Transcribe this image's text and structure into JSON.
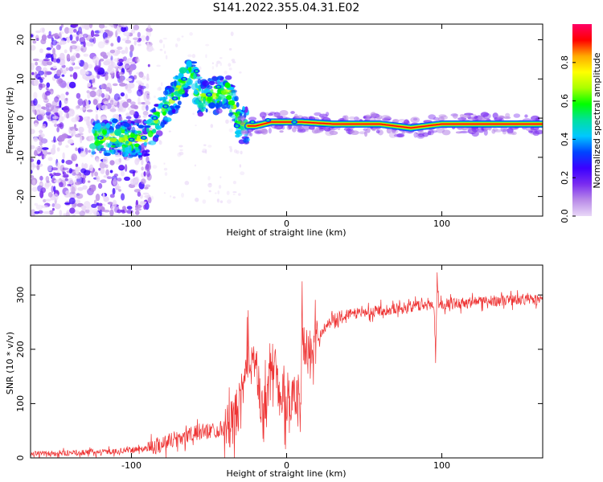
{
  "title": "S141.2022.355.04.31.E02",
  "chart_data": [
    {
      "type": "heatmap",
      "xlabel": "Height of straight line (km)",
      "ylabel": "Frequency (Hz)",
      "xlim": [
        -165,
        165
      ],
      "ylim": [
        -25,
        24
      ],
      "x_ticks": [
        -100,
        0,
        100
      ],
      "y_ticks": [
        -20,
        -10,
        0,
        10,
        20
      ],
      "grid": false,
      "colorbar": {
        "label": "Normalized spectral amplitude",
        "range": [
          0,
          1
        ],
        "ticks": [
          "0.0",
          "0.2",
          "0.4",
          "0.6",
          "0.8"
        ],
        "tick_values": [
          0.0,
          0.2,
          0.4,
          0.6,
          0.8
        ],
        "colormap": [
          "#e9d8f7",
          "#b98be8",
          "#7a2cf0",
          "#3b00ff",
          "#0045ff",
          "#00c8ff",
          "#00e0a0",
          "#00ff00",
          "#aaff00",
          "#ffff00",
          "#ffaa00",
          "#ff0000",
          "#ff0066"
        ]
      },
      "ridge": [
        {
          "x": -125,
          "y": -5
        },
        {
          "x": -110,
          "y": -5
        },
        {
          "x": -100,
          "y": -5.5
        },
        {
          "x": -90,
          "y": -5
        },
        {
          "x": -80,
          "y": 2
        },
        {
          "x": -70,
          "y": 7
        },
        {
          "x": -62,
          "y": 12
        },
        {
          "x": -55,
          "y": 5
        },
        {
          "x": -45,
          "y": 6
        },
        {
          "x": -38,
          "y": 7
        },
        {
          "x": -30,
          "y": -2
        },
        {
          "x": -20,
          "y": -2
        },
        {
          "x": -10,
          "y": -1
        },
        {
          "x": 0,
          "y": -1
        },
        {
          "x": 10,
          "y": -1
        },
        {
          "x": 30,
          "y": -1.5
        },
        {
          "x": 60,
          "y": -1.5
        },
        {
          "x": 80,
          "y": -2.5
        },
        {
          "x": 100,
          "y": -1.5
        },
        {
          "x": 130,
          "y": -1.5
        },
        {
          "x": 165,
          "y": -1.5
        }
      ]
    },
    {
      "type": "line",
      "xlabel": "Height of straight line (km)",
      "ylabel": "SNR (10 * v/v)",
      "xlim": [
        -165,
        165
      ],
      "ylim": [
        0,
        355
      ],
      "x_ticks": [
        -100,
        0,
        100
      ],
      "y_ticks": [
        0,
        100,
        200,
        300
      ],
      "grid": false,
      "color": "#ee3333",
      "series": [
        {
          "x": [
            -165,
            -150,
            -130,
            -110,
            -95,
            -85,
            -75,
            -65,
            -55,
            -45,
            -35,
            -28,
            -24,
            -20,
            -16,
            -12,
            -8,
            -4,
            0,
            5,
            9,
            10,
            12,
            15,
            18,
            22,
            27,
            35,
            50,
            70,
            85,
            95,
            96,
            97,
            98,
            100,
            120,
            140,
            165
          ],
          "values": [
            8,
            8,
            10,
            12,
            16,
            22,
            32,
            40,
            48,
            52,
            60,
            120,
            200,
            170,
            80,
            130,
            180,
            130,
            90,
            130,
            80,
            260,
            200,
            185,
            200,
            230,
            250,
            262,
            268,
            275,
            280,
            283,
            180,
            340,
            285,
            283,
            287,
            290,
            292
          ]
        }
      ]
    }
  ]
}
